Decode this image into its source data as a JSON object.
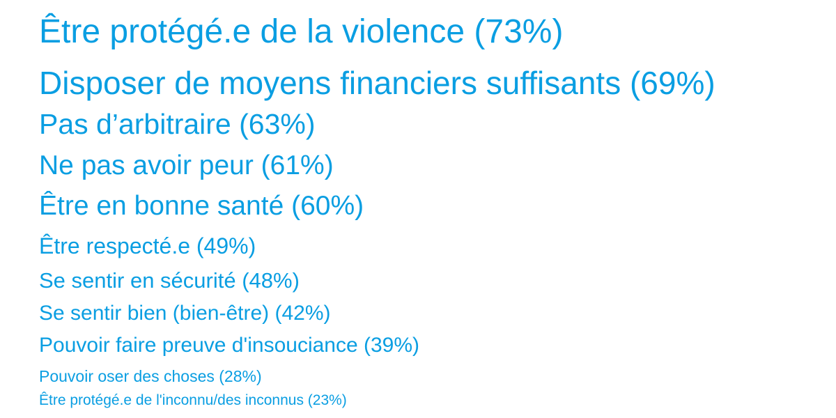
{
  "colors": {
    "text": "#0a9ee2",
    "background": "#ffffff"
  },
  "items": [
    {
      "label": "Être protégé.e de la violence (73%)",
      "percent": 73
    },
    {
      "label": "Disposer de moyens financiers suffisants (69%)",
      "percent": 69
    },
    {
      "label": "Pas d’arbitraire (63%)",
      "percent": 63
    },
    {
      "label": "Ne pas avoir peur (61%)",
      "percent": 61
    },
    {
      "label": "Être en bonne santé (60%)",
      "percent": 60
    },
    {
      "label": "Être respecté.e (49%)",
      "percent": 49
    },
    {
      "label": "Se sentir en sécurité (48%)",
      "percent": 48
    },
    {
      "label": "Se sentir bien (bien-être) (42%)",
      "percent": 42
    },
    {
      "label": "Pouvoir faire preuve d'insouciance (39%)",
      "percent": 39
    },
    {
      "label": "Pouvoir oser des choses (28%)",
      "percent": 28
    },
    {
      "label": "Être protégé.e de l'inconnu/des inconnus (23%)",
      "percent": 23
    }
  ]
}
